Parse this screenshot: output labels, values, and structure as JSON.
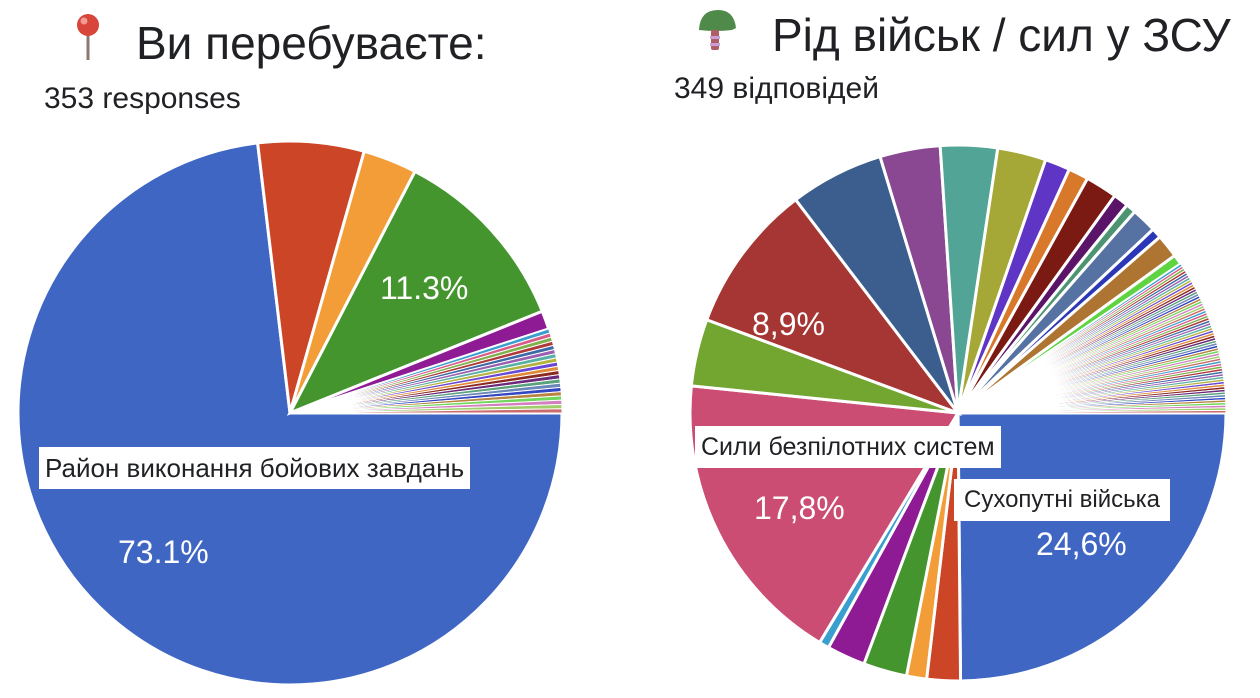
{
  "charts": {
    "left": {
      "title": "Ви перебуваєте:",
      "icon": "round-pushpin-icon",
      "subtitle": "353 responses",
      "slice_label": "Район виконання бойових завдань",
      "pct_labels": {
        "main": "73.1%",
        "green": "11.3%"
      }
    },
    "right": {
      "title": "Рід військ / сил у ЗСУ",
      "icon": "military-helmet-icon",
      "subtitle": "349 відповідей",
      "slice_labels": {
        "unmanned": "Сили безпілотних систем",
        "ground": "Сухопутні війська"
      },
      "pct_labels": {
        "ground": "24,6%",
        "unmanned": "17,8%",
        "darkred": "8,9%"
      }
    }
  },
  "chart_data": [
    {
      "type": "pie",
      "title": "Ви перебуваєте:",
      "subtitle": "353 responses",
      "center": [
        290,
        413
      ],
      "radius": 272,
      "start_angle_deg": 0,
      "slices": [
        {
          "label": "Район виконання бойових завдань",
          "value": 73.1,
          "color": "#4066c4",
          "show_pct": true
        },
        {
          "label": "",
          "value": 6.3,
          "color": "#cc4526"
        },
        {
          "label": "",
          "value": 3.2,
          "color": "#f29d38"
        },
        {
          "label": "",
          "value": 11.3,
          "color": "#44952e",
          "show_pct": true
        },
        {
          "label": "",
          "value": 1.1,
          "color": "#8e1a94"
        }
      ],
      "tail": {
        "count": 20,
        "total": 5.0
      }
    },
    {
      "type": "pie",
      "title": "Рід військ / сил у ЗСУ",
      "subtitle": "349 відповідей",
      "center": [
        958,
        413
      ],
      "radius": 268,
      "start_angle_deg": 0,
      "slices": [
        {
          "label": "Сухопутні війська",
          "value": 24.6,
          "color": "#4066c4",
          "show_pct": true
        },
        {
          "label": "",
          "value": 2.0,
          "color": "#cc4526"
        },
        {
          "label": "",
          "value": 1.2,
          "color": "#f29d38"
        },
        {
          "label": "",
          "value": 2.6,
          "color": "#44952e"
        },
        {
          "label": "",
          "value": 2.3,
          "color": "#8e1a94"
        },
        {
          "label": "",
          "value": 0.6,
          "color": "#3a9fcf"
        },
        {
          "label": "Сили безпілотних систем",
          "value": 17.8,
          "color": "#cb4d74",
          "show_pct": true
        },
        {
          "label": "",
          "value": 4.0,
          "color": "#72a631"
        },
        {
          "label": "",
          "value": 8.9,
          "color": "#a53633",
          "show_pct": true
        },
        {
          "label": "",
          "value": 5.6,
          "color": "#3b5e8e"
        },
        {
          "label": "",
          "value": 3.6,
          "color": "#8b4892"
        },
        {
          "label": "",
          "value": 3.4,
          "color": "#52a497"
        },
        {
          "label": "",
          "value": 2.9,
          "color": "#a5a836"
        },
        {
          "label": "",
          "value": 1.5,
          "color": "#5f35c6"
        },
        {
          "label": "",
          "value": 1.2,
          "color": "#d8782a"
        },
        {
          "label": "",
          "value": 1.9,
          "color": "#7b1a13"
        },
        {
          "label": "",
          "value": 0.9,
          "color": "#5a1468"
        },
        {
          "label": "",
          "value": 0.6,
          "color": "#4d9472"
        },
        {
          "label": "",
          "value": 1.5,
          "color": "#5672a3"
        },
        {
          "label": "",
          "value": 0.6,
          "color": "#2c37b8"
        },
        {
          "label": "",
          "value": 1.4,
          "color": "#ad7531"
        },
        {
          "label": "",
          "value": 0.6,
          "color": "#5fd340"
        }
      ],
      "tail": {
        "count": 60,
        "total": 9.3
      }
    }
  ]
}
